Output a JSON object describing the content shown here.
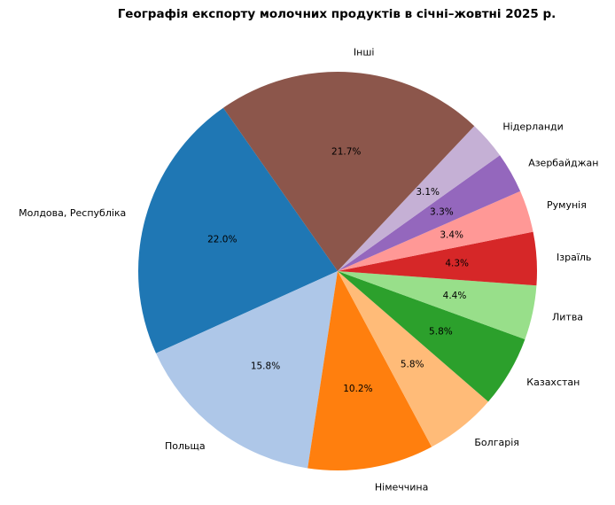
{
  "chart_data": {
    "type": "pie",
    "title": "Географія експорту молочних продуктів в січні–жовтні 2025 р.",
    "start_angle_deg": 125,
    "direction": "counterclockwise",
    "slices": [
      {
        "label": "Молдова, Республіка",
        "value": 22.0,
        "pct_label": "22.0%",
        "color": "#1f77b4"
      },
      {
        "label": "Польща",
        "value": 15.8,
        "pct_label": "15.8%",
        "color": "#aec7e8"
      },
      {
        "label": "Німеччина",
        "value": 10.2,
        "pct_label": "10.2%",
        "color": "#ff7f0e"
      },
      {
        "label": "Болгарія",
        "value": 5.8,
        "pct_label": "5.8%",
        "color": "#ffbb78"
      },
      {
        "label": "Казахстан",
        "value": 5.8,
        "pct_label": "5.8%",
        "color": "#2ca02c"
      },
      {
        "label": "Литва",
        "value": 4.4,
        "pct_label": "4.4%",
        "color": "#98df8a"
      },
      {
        "label": "Ізраїль",
        "value": 4.3,
        "pct_label": "4.3%",
        "color": "#d62728"
      },
      {
        "label": "Румунія",
        "value": 3.4,
        "pct_label": "3.4%",
        "color": "#ff9896"
      },
      {
        "label": "Азербайджан",
        "value": 3.3,
        "pct_label": "3.3%",
        "color": "#9467bd"
      },
      {
        "label": "Нідерланди",
        "value": 3.1,
        "pct_label": "3.1%",
        "color": "#c5b0d5"
      },
      {
        "label": "Інші",
        "value": 21.7,
        "pct_label": "21.7%",
        "color": "#8c564b"
      }
    ]
  }
}
